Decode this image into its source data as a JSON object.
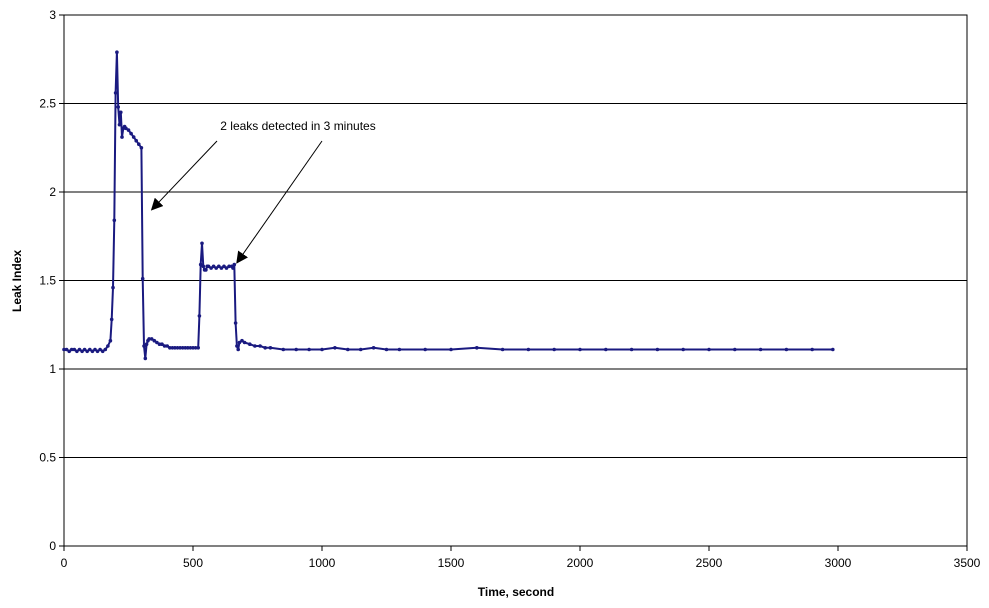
{
  "chart_data": {
    "type": "line",
    "title": "",
    "xlabel": "Time, second",
    "ylabel": "Leak Index",
    "xlim": [
      0,
      3500
    ],
    "ylim": [
      0,
      3
    ],
    "xticks": [
      0,
      500,
      1000,
      1500,
      2000,
      2500,
      3000,
      3500
    ],
    "yticks": [
      0,
      0.5,
      1,
      1.5,
      2,
      2.5,
      3
    ],
    "xtick_labels": [
      "0",
      "500",
      "1000",
      "1500",
      "2000",
      "2500",
      "3000",
      "3500"
    ],
    "ytick_labels": [
      "0",
      "0.5",
      "1",
      "1.5",
      "2",
      "2.5",
      "3"
    ],
    "grid": "horizontal",
    "legend": "none",
    "series_color": "#1a1a80",
    "annotation": {
      "text": "2 leaks detected in 3 minutes",
      "targets": [
        [
          340,
          1.9
        ],
        [
          670,
          1.6
        ]
      ]
    },
    "series": [
      {
        "x": [
          0,
          10,
          20,
          30,
          40,
          50,
          60,
          70,
          80,
          90,
          100,
          110,
          120,
          130,
          140,
          150,
          160,
          170,
          180,
          185,
          190,
          195,
          200,
          205,
          210,
          215,
          220,
          225,
          230,
          235,
          240,
          250,
          260,
          270,
          280,
          290,
          300,
          305,
          310,
          315,
          320,
          325,
          330,
          340,
          350,
          360,
          370,
          380,
          390,
          400,
          410,
          420,
          430,
          440,
          450,
          460,
          470,
          480,
          490,
          500,
          510,
          520,
          525,
          530,
          535,
          540,
          545,
          550,
          555,
          560,
          570,
          580,
          590,
          600,
          610,
          620,
          630,
          640,
          650,
          655,
          660,
          665,
          670,
          675,
          680,
          690,
          700,
          720,
          740,
          760,
          780,
          800,
          850,
          900,
          950,
          1000,
          1050,
          1100,
          1150,
          1200,
          1250,
          1300,
          1400,
          1500,
          1600,
          1700,
          1800,
          1900,
          2000,
          2100,
          2200,
          2300,
          2400,
          2500,
          2600,
          2700,
          2800,
          2900,
          2980
        ],
        "values": [
          1.11,
          1.11,
          1.1,
          1.11,
          1.11,
          1.1,
          1.11,
          1.1,
          1.11,
          1.1,
          1.11,
          1.1,
          1.11,
          1.1,
          1.11,
          1.1,
          1.11,
          1.13,
          1.16,
          1.28,
          1.46,
          1.84,
          2.56,
          2.79,
          2.48,
          2.38,
          2.45,
          2.31,
          2.36,
          2.37,
          2.36,
          2.35,
          2.33,
          2.31,
          2.29,
          2.27,
          2.25,
          1.51,
          1.13,
          1.06,
          1.14,
          1.16,
          1.17,
          1.17,
          1.16,
          1.15,
          1.14,
          1.14,
          1.13,
          1.13,
          1.12,
          1.12,
          1.12,
          1.12,
          1.12,
          1.12,
          1.12,
          1.12,
          1.12,
          1.12,
          1.12,
          1.12,
          1.3,
          1.59,
          1.71,
          1.58,
          1.56,
          1.56,
          1.58,
          1.58,
          1.57,
          1.58,
          1.57,
          1.58,
          1.57,
          1.58,
          1.57,
          1.58,
          1.58,
          1.57,
          1.59,
          1.26,
          1.13,
          1.11,
          1.15,
          1.16,
          1.15,
          1.14,
          1.13,
          1.13,
          1.12,
          1.12,
          1.11,
          1.11,
          1.11,
          1.11,
          1.12,
          1.11,
          1.11,
          1.12,
          1.11,
          1.11,
          1.11,
          1.11,
          1.12,
          1.11,
          1.11,
          1.11,
          1.11,
          1.11,
          1.11,
          1.11,
          1.11,
          1.11,
          1.11,
          1.11,
          1.11,
          1.11,
          1.11
        ]
      }
    ]
  }
}
